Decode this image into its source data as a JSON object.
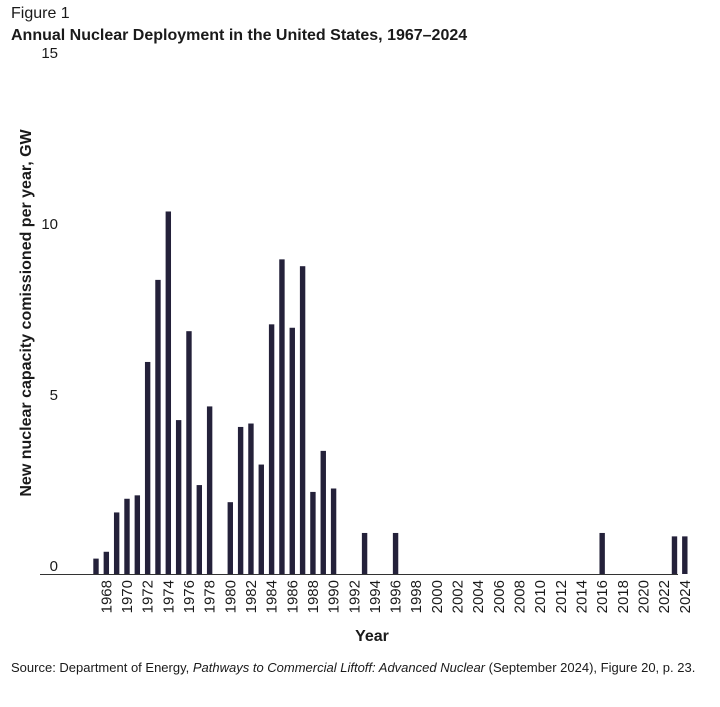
{
  "figure_label": "Figure 1",
  "source": {
    "prefix": "Source: Department of Energy, ",
    "title": "Pathways to Commercial Liftoff: Advanced Nuclear",
    "suffix": " (September 2024), Figure 20, p. 23."
  },
  "colors": {
    "bar": "#24213a",
    "axis": "#333333"
  },
  "chart_data": {
    "type": "bar",
    "title": "Annual Nuclear Deployment in the United States, 1967–2024",
    "xlabel": "Year",
    "ylabel": "New nuclear capacity comissioned per year, GW",
    "ylim": [
      0,
      15
    ],
    "yticks": [
      0,
      5,
      10,
      15
    ],
    "grid": false,
    "categories": [
      1967,
      1968,
      1969,
      1970,
      1971,
      1972,
      1973,
      1974,
      1975,
      1976,
      1977,
      1978,
      1979,
      1980,
      1981,
      1982,
      1983,
      1984,
      1985,
      1986,
      1987,
      1988,
      1989,
      1990,
      1991,
      1992,
      1993,
      1994,
      1995,
      1996,
      1997,
      1998,
      1999,
      2000,
      2001,
      2002,
      2003,
      2004,
      2005,
      2006,
      2007,
      2008,
      2009,
      2010,
      2011,
      2012,
      2013,
      2014,
      2015,
      2016,
      2017,
      2018,
      2019,
      2020,
      2021,
      2022,
      2023,
      2024
    ],
    "xtick_labels": [
      1968,
      1970,
      1972,
      1974,
      1976,
      1978,
      1980,
      1982,
      1984,
      1986,
      1988,
      1990,
      1992,
      1994,
      1996,
      1998,
      2000,
      2002,
      2004,
      2006,
      2008,
      2010,
      2012,
      2014,
      2016,
      2018,
      2020,
      2022,
      2024
    ],
    "values": [
      0.45,
      0.65,
      1.8,
      2.2,
      2.3,
      6.2,
      8.6,
      10.6,
      4.5,
      7.1,
      2.6,
      4.9,
      0,
      2.1,
      4.3,
      4.4,
      3.2,
      7.3,
      9.2,
      7.2,
      9.0,
      2.4,
      3.6,
      2.5,
      0,
      0,
      1.2,
      0,
      0,
      1.2,
      0,
      0,
      0,
      0,
      0,
      0,
      0,
      0,
      0,
      0,
      0,
      0,
      0,
      0,
      0,
      0,
      0,
      0,
      0,
      1.2,
      0,
      0,
      0,
      0,
      0,
      0,
      1.1,
      1.1
    ]
  }
}
